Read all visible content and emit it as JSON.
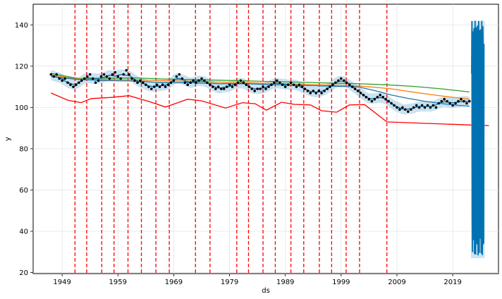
{
  "chart_data": {
    "type": "line",
    "xlabel": "ds",
    "ylabel": "y",
    "xlim": [
      1943.8,
      2027.2
    ],
    "ylim": [
      19.5,
      150
    ],
    "x_ticks": [
      1949,
      1959,
      1969,
      1979,
      1989,
      1999,
      2009,
      2019
    ],
    "y_ticks": [
      20,
      40,
      60,
      80,
      100,
      120,
      140
    ],
    "grid": true,
    "colors": {
      "observed": "#000000",
      "forecast": "#0072B2",
      "uncertainty": "#9ecae1",
      "changepoints": "#ff0000",
      "red_series": "#ff0000",
      "orange_series": "#ff7f0e",
      "green_series": "#2ca02c",
      "blue_series": "#1f77b4"
    },
    "changepoints_x": [
      1951.3,
      1953.4,
      1956.1,
      1958.3,
      1960.8,
      1963.2,
      1965.8,
      1968.2,
      1972.9,
      1975.5,
      1980.3,
      1982.4,
      1985.0,
      1987.2,
      1990.0,
      1992.3,
      1995.1,
      1997.3,
      1999.9,
      2002.3,
      2007.2
    ],
    "observed": {
      "x": [
        1947.0,
        1947.5,
        1948.0,
        1948.5,
        1949.0,
        1949.5,
        1950.0,
        1950.5,
        1951.0,
        1951.5,
        1952.0,
        1952.5,
        1953.0,
        1953.5,
        1954.0,
        1954.5,
        1955.0,
        1955.5,
        1956.0,
        1956.5,
        1957.0,
        1957.5,
        1958.0,
        1958.5,
        1959.0,
        1959.5,
        1960.0,
        1960.5,
        1961.0,
        1961.5,
        1962.0,
        1962.5,
        1963.0,
        1963.5,
        1964.0,
        1964.5,
        1965.0,
        1965.5,
        1966.0,
        1966.5,
        1967.0,
        1967.5,
        1968.0,
        1968.5,
        1969.0,
        1969.5,
        1970.0,
        1970.5,
        1971.0,
        1971.5,
        1972.0,
        1972.5,
        1973.0,
        1973.5,
        1974.0,
        1974.5,
        1975.0,
        1975.5,
        1976.0,
        1976.5,
        1977.0,
        1977.5,
        1978.0,
        1978.5,
        1979.0,
        1979.5,
        1980.0,
        1980.5,
        1981.0,
        1981.5,
        1982.0,
        1982.5,
        1983.0,
        1983.5,
        1984.0,
        1984.5,
        1985.0,
        1985.5,
        1986.0,
        1986.5,
        1987.0,
        1987.5,
        1988.0,
        1988.5,
        1989.0,
        1989.5,
        1990.0,
        1990.5,
        1991.0,
        1991.5,
        1992.0,
        1992.5,
        1993.0,
        1993.5,
        1994.0,
        1994.5,
        1995.0,
        1995.5,
        1996.0,
        1996.5,
        1997.0,
        1997.5,
        1998.0,
        1998.5,
        1999.0,
        1999.5,
        2000.0,
        2000.5,
        2001.0,
        2001.5,
        2002.0,
        2002.5,
        2003.0,
        2003.5,
        2004.0,
        2004.5,
        2005.0,
        2005.5,
        2006.0,
        2006.5,
        2007.0,
        2007.5,
        2008.0,
        2008.5,
        2009.0,
        2009.5,
        2010.0,
        2010.5,
        2011.0,
        2011.5,
        2012.0,
        2012.5,
        2013.0,
        2013.5,
        2014.0,
        2014.5,
        2015.0,
        2015.5,
        2016.0,
        2016.5,
        2017.0,
        2017.5,
        2018.0,
        2018.5,
        2019.0,
        2019.5,
        2020.0,
        2020.5,
        2021.0,
        2021.5,
        2022.0
      ],
      "y": [
        116,
        115,
        116,
        114,
        113,
        114,
        112,
        111,
        110,
        111,
        112,
        113,
        114,
        115,
        116,
        114,
        112,
        113,
        115,
        116,
        115,
        114,
        116,
        117,
        115,
        114,
        116,
        118,
        116,
        114,
        113,
        112,
        113,
        112,
        111,
        110,
        109,
        110,
        111,
        110,
        111,
        110,
        111,
        112,
        113,
        115,
        116,
        114,
        112,
        111,
        112,
        113,
        112,
        113,
        114,
        113,
        112,
        111,
        110,
        109,
        110,
        109,
        109,
        110,
        111,
        110,
        111,
        112,
        113,
        112,
        111,
        110,
        109,
        108,
        109,
        109,
        110,
        109,
        110,
        111,
        112,
        113,
        112,
        111,
        110,
        111,
        112,
        111,
        110,
        111,
        110,
        109,
        108,
        107,
        108,
        107,
        108,
        107,
        108,
        109,
        110,
        111,
        112,
        113,
        114,
        113,
        112,
        111,
        110,
        109,
        108,
        107,
        106,
        105,
        104,
        103,
        104,
        105,
        106,
        105,
        104,
        103,
        102,
        101,
        100,
        99,
        100,
        99,
        98,
        99,
        100,
        101,
        100,
        101,
        100,
        101,
        100,
        101,
        100,
        102,
        103,
        104,
        103,
        102,
        101,
        102,
        103,
        104,
        103,
        102,
        103
      ]
    },
    "series": [
      {
        "color": "#ff0000",
        "x": [
          1947.0,
          1950.0,
          1952.4,
          1954.2,
          1957.5,
          1961.0,
          1964.7,
          1967.5,
          1971.5,
          1974.0,
          1978.3,
          1981.3,
          1983.6,
          1985.6,
          1988.3,
          1990.6,
          1993.5,
          1995.5,
          1998.2,
          2000.5,
          2003.2,
          2007.2,
          2022.0,
          2025.5
        ],
        "y": [
          107,
          103.5,
          102.3,
          104.3,
          104.8,
          105.7,
          102.8,
          100.2,
          104.0,
          103.2,
          99.7,
          102.3,
          101.8,
          98.7,
          102.5,
          101.5,
          101.2,
          98.4,
          97.7,
          101.2,
          101.4,
          93.0,
          91.5,
          91.2
        ]
      },
      {
        "color": "#2ca02c",
        "x": [
          1947.0,
          1952.0,
          1957.0,
          1962.0,
          1967.0,
          1972.0,
          1977.0,
          1982.0,
          1987.0,
          1992.0,
          1997.0,
          2002.0,
          2007.0,
          2012.0,
          2017.0,
          2022.0
        ],
        "y": [
          116.5,
          114.0,
          114.2,
          114.3,
          113.8,
          113.5,
          113.2,
          112.9,
          112.5,
          112.2,
          111.8,
          111.5,
          111.0,
          110.2,
          109.0,
          107.5
        ]
      },
      {
        "color": "#ff7f0e",
        "x": [
          1947.0,
          1952.0,
          1957.0,
          1962.0,
          1967.0,
          1972.0,
          1977.0,
          1982.0,
          1987.0,
          1992.0,
          1997.0,
          2002.0,
          2005.0,
          2008.0,
          2012.0,
          2016.0,
          2020.0,
          2022.0
        ],
        "y": [
          115.8,
          113.7,
          113.5,
          113.4,
          113.0,
          112.7,
          112.3,
          112.0,
          111.6,
          111.2,
          110.8,
          110.4,
          109.8,
          109.0,
          107.4,
          105.9,
          104.6,
          104.0
        ]
      },
      {
        "color": "#1f77b4",
        "x": [
          1947.0,
          1952.0,
          1957.0,
          1962.0,
          1967.0,
          1972.0,
          1977.0,
          1982.0,
          1987.0,
          1992.0,
          1997.0,
          2002.0,
          2004.0,
          2006.0,
          2008.0,
          2011.0,
          2014.0,
          2017.0,
          2020.0,
          2022.0
        ],
        "y": [
          115.0,
          113.5,
          113.0,
          112.8,
          112.0,
          112.0,
          111.5,
          111.5,
          111.0,
          110.7,
          110.3,
          110.0,
          108.8,
          107.5,
          106.0,
          104.4,
          103.0,
          101.9,
          101.0,
          100.6
        ]
      }
    ],
    "forecast_oscillation": {
      "x_start": 2022.4,
      "x_end": 2024.6,
      "center": 85,
      "max": 142,
      "min": 27
    }
  }
}
